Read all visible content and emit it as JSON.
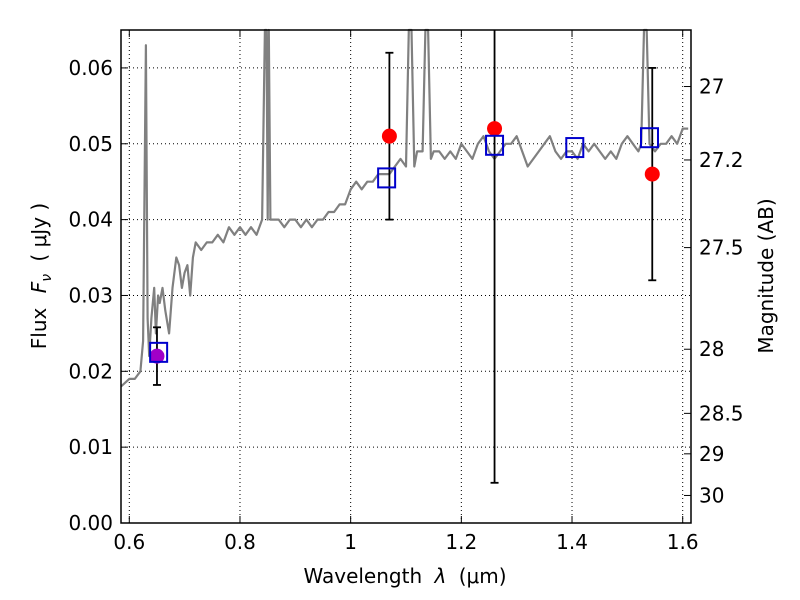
{
  "chart_data": {
    "type": "scatter",
    "xlabel": "Wavelength",
    "xlabel_symbol": "λ",
    "xlabel_unit": "(μm)",
    "ylabel": "Flux",
    "ylabel_symbol": "F",
    "ylabel_sub": "ν",
    "ylabel_unit": "( μJy )",
    "y2label": "Magnitude (AB)",
    "xlim": [
      0.585,
      1.615
    ],
    "ylim": [
      0.0,
      0.065
    ],
    "grid": true,
    "x_ticks": [
      0.6,
      0.8,
      1.0,
      1.2,
      1.4,
      1.6
    ],
    "x_tick_labels": [
      "0.6",
      "0.8",
      "1",
      "1.2",
      "1.4",
      "1.6"
    ],
    "y_ticks": [
      0.0,
      0.01,
      0.02,
      0.03,
      0.04,
      0.05,
      0.06
    ],
    "y_tick_labels": [
      "0.00",
      "0.01",
      "0.02",
      "0.03",
      "0.04",
      "0.05",
      "0.06"
    ],
    "mag_ticks": [
      27,
      27.2,
      27.5,
      28,
      28.5,
      29,
      30
    ],
    "mag_tick_labels": [
      "27",
      "27.2",
      "27.5",
      "28",
      "28.5",
      "29",
      "30"
    ],
    "colors": {
      "model": "#808080",
      "observed": "#ff0000",
      "observed_first": "#a000c8",
      "synthetic": "#0000cc",
      "errorbar": "#000000"
    },
    "series": [
      {
        "name": "model spectrum",
        "kind": "line",
        "x": [
          0.585,
          0.6,
          0.61,
          0.62,
          0.625,
          0.63,
          0.633,
          0.636,
          0.64,
          0.645,
          0.648,
          0.652,
          0.655,
          0.66,
          0.665,
          0.672,
          0.678,
          0.685,
          0.69,
          0.695,
          0.7,
          0.705,
          0.71,
          0.715,
          0.72,
          0.73,
          0.74,
          0.75,
          0.76,
          0.77,
          0.78,
          0.79,
          0.8,
          0.81,
          0.82,
          0.83,
          0.84,
          0.845,
          0.848,
          0.85,
          0.852,
          0.855,
          0.86,
          0.87,
          0.88,
          0.89,
          0.9,
          0.91,
          0.92,
          0.93,
          0.94,
          0.95,
          0.96,
          0.97,
          0.98,
          0.99,
          1.0,
          1.01,
          1.02,
          1.03,
          1.04,
          1.05,
          1.06,
          1.07,
          1.08,
          1.09,
          1.1,
          1.105,
          1.11,
          1.115,
          1.12,
          1.13,
          1.135,
          1.14,
          1.145,
          1.15,
          1.16,
          1.17,
          1.18,
          1.19,
          1.2,
          1.21,
          1.22,
          1.23,
          1.24,
          1.25,
          1.26,
          1.27,
          1.28,
          1.29,
          1.3,
          1.31,
          1.32,
          1.33,
          1.34,
          1.35,
          1.36,
          1.37,
          1.38,
          1.39,
          1.4,
          1.41,
          1.42,
          1.43,
          1.44,
          1.45,
          1.46,
          1.47,
          1.48,
          1.49,
          1.5,
          1.51,
          1.52,
          1.525,
          1.53,
          1.535,
          1.54,
          1.55,
          1.56,
          1.57,
          1.58,
          1.59,
          1.6,
          1.61
        ],
        "values": [
          0.018,
          0.019,
          0.019,
          0.02,
          0.024,
          0.063,
          0.027,
          0.022,
          0.027,
          0.031,
          0.025,
          0.03,
          0.029,
          0.031,
          0.028,
          0.025,
          0.031,
          0.035,
          0.034,
          0.031,
          0.033,
          0.034,
          0.03,
          0.035,
          0.037,
          0.036,
          0.037,
          0.037,
          0.038,
          0.037,
          0.039,
          0.038,
          0.039,
          0.038,
          0.039,
          0.038,
          0.04,
          0.065,
          0.065,
          0.04,
          0.065,
          0.04,
          0.04,
          0.04,
          0.039,
          0.04,
          0.04,
          0.039,
          0.04,
          0.039,
          0.04,
          0.04,
          0.041,
          0.041,
          0.042,
          0.042,
          0.044,
          0.045,
          0.044,
          0.045,
          0.045,
          0.046,
          0.046,
          0.046,
          0.047,
          0.048,
          0.047,
          0.065,
          0.065,
          0.047,
          0.049,
          0.049,
          0.065,
          0.065,
          0.048,
          0.049,
          0.049,
          0.048,
          0.049,
          0.048,
          0.05,
          0.049,
          0.048,
          0.05,
          0.051,
          0.049,
          0.048,
          0.049,
          0.05,
          0.05,
          0.051,
          0.049,
          0.047,
          0.048,
          0.049,
          0.05,
          0.051,
          0.049,
          0.048,
          0.049,
          0.049,
          0.048,
          0.05,
          0.049,
          0.05,
          0.049,
          0.048,
          0.049,
          0.048,
          0.05,
          0.051,
          0.05,
          0.049,
          0.05,
          0.065,
          0.065,
          0.05,
          0.049,
          0.05,
          0.05,
          0.051,
          0.05,
          0.052,
          0.052
        ]
      },
      {
        "name": "observed photometry",
        "kind": "points_with_errors",
        "x": [
          0.65,
          1.07,
          1.26,
          1.545
        ],
        "values": [
          0.022,
          0.051,
          0.052,
          0.046
        ],
        "err_low": [
          0.0182,
          0.04,
          0.0053,
          0.032
        ],
        "err_high": [
          0.0258,
          0.062,
          0.065,
          0.06
        ]
      },
      {
        "name": "synthetic photometry",
        "kind": "open_squares",
        "x": [
          0.653,
          1.065,
          1.26,
          1.405,
          1.54
        ],
        "values": [
          0.0225,
          0.0455,
          0.0498,
          0.0495,
          0.0508
        ]
      }
    ]
  }
}
